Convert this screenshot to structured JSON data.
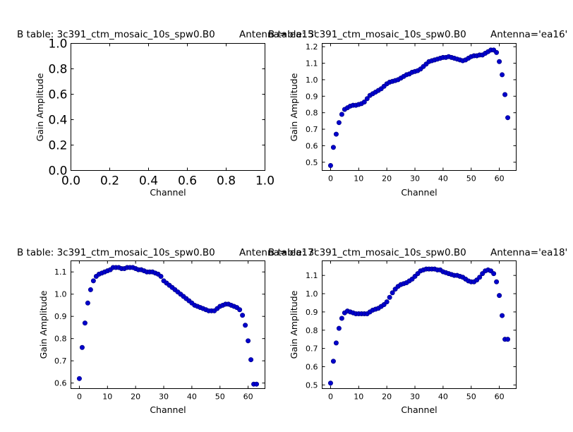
{
  "chart_data": [
    {
      "type": "scatter",
      "panel": "top-left",
      "title_left": "B table: 3c391_ctm_mosaic_10s_spw0.B0",
      "title_right": "Antenna='ea15'",
      "xlabel": "Channel",
      "ylabel": "Gain Amplitude",
      "xlim": [
        0,
        1
      ],
      "ylim": [
        0,
        1
      ],
      "xticks": [
        0.0,
        0.2,
        0.4,
        0.6,
        0.8,
        1.0
      ],
      "yticks": [
        0.0,
        0.2,
        0.4,
        0.6,
        0.8,
        1.0
      ],
      "xtick_labels": [
        "0.0",
        "0.2",
        "0.4",
        "0.6",
        "0.8",
        "1.0"
      ],
      "ytick_labels": [
        "0.0",
        "0.2",
        "0.4",
        "0.6",
        "0.8",
        "1.0"
      ],
      "series": []
    },
    {
      "type": "scatter",
      "panel": "top-right",
      "title_left": "B table: 3c391_ctm_mosaic_10s_spw0.B0",
      "title_right": "Antenna='ea16'",
      "xlabel": "Channel",
      "ylabel": "Gain Amplitude",
      "xlim": [
        -3,
        66
      ],
      "ylim": [
        0.45,
        1.22
      ],
      "xticks": [
        0,
        10,
        20,
        30,
        40,
        50,
        60
      ],
      "yticks": [
        0.5,
        0.6,
        0.7,
        0.8,
        0.9,
        1.0,
        1.1,
        1.2
      ],
      "xtick_labels": [
        "0",
        "10",
        "20",
        "30",
        "40",
        "50",
        "60"
      ],
      "ytick_labels": [
        "0.5",
        "0.6",
        "0.7",
        "0.8",
        "0.9",
        "1.0",
        "1.1",
        "1.2"
      ],
      "series": [
        {
          "color": "#0000cc",
          "x": [
            0,
            1,
            2,
            3,
            4,
            5,
            6,
            7,
            8,
            9,
            10,
            11,
            12,
            13,
            14,
            15,
            16,
            17,
            18,
            19,
            20,
            21,
            22,
            23,
            24,
            25,
            26,
            27,
            28,
            29,
            30,
            31,
            32,
            33,
            34,
            35,
            36,
            37,
            38,
            39,
            40,
            41,
            42,
            43,
            44,
            45,
            46,
            47,
            48,
            49,
            50,
            51,
            52,
            53,
            54,
            55,
            56,
            57,
            58,
            59,
            60,
            61,
            62,
            63
          ],
          "y": [
            0.48,
            0.59,
            0.67,
            0.74,
            0.79,
            0.82,
            0.83,
            0.84,
            0.845,
            0.845,
            0.85,
            0.855,
            0.865,
            0.885,
            0.905,
            0.915,
            0.925,
            0.935,
            0.945,
            0.96,
            0.975,
            0.985,
            0.99,
            0.995,
            1.0,
            1.01,
            1.02,
            1.03,
            1.035,
            1.045,
            1.05,
            1.055,
            1.065,
            1.08,
            1.095,
            1.11,
            1.115,
            1.12,
            1.125,
            1.13,
            1.135,
            1.135,
            1.14,
            1.135,
            1.13,
            1.125,
            1.12,
            1.115,
            1.12,
            1.13,
            1.14,
            1.145,
            1.145,
            1.15,
            1.15,
            1.16,
            1.17,
            1.18,
            1.18,
            1.165,
            1.11,
            1.03,
            0.91,
            0.77
          ]
        }
      ]
    },
    {
      "type": "scatter",
      "panel": "bottom-left",
      "title_left": "B table: 3c391_ctm_mosaic_10s_spw0.B0",
      "title_right": "Antenna='ea17'",
      "xlabel": "Channel",
      "ylabel": "Gain Amplitude",
      "xlim": [
        -3,
        66
      ],
      "ylim": [
        0.575,
        1.15
      ],
      "xticks": [
        0,
        10,
        20,
        30,
        40,
        50,
        60
      ],
      "yticks": [
        0.6,
        0.7,
        0.8,
        0.9,
        1.0,
        1.1
      ],
      "xtick_labels": [
        "0",
        "10",
        "20",
        "30",
        "40",
        "50",
        "60"
      ],
      "ytick_labels": [
        "0.6",
        "0.7",
        "0.8",
        "0.9",
        "1.0",
        "1.1"
      ],
      "series": [
        {
          "color": "#0000cc",
          "x": [
            0,
            1,
            2,
            3,
            4,
            5,
            6,
            7,
            8,
            9,
            10,
            11,
            12,
            13,
            14,
            15,
            16,
            17,
            18,
            19,
            20,
            21,
            22,
            23,
            24,
            25,
            26,
            27,
            28,
            29,
            30,
            31,
            32,
            33,
            34,
            35,
            36,
            37,
            38,
            39,
            40,
            41,
            42,
            43,
            44,
            45,
            46,
            47,
            48,
            49,
            50,
            51,
            52,
            53,
            54,
            55,
            56,
            57,
            58,
            59,
            60,
            61,
            62,
            63
          ],
          "y": [
            0.62,
            0.76,
            0.87,
            0.96,
            1.02,
            1.06,
            1.08,
            1.09,
            1.095,
            1.1,
            1.105,
            1.11,
            1.12,
            1.12,
            1.12,
            1.115,
            1.115,
            1.12,
            1.12,
            1.12,
            1.115,
            1.11,
            1.11,
            1.105,
            1.1,
            1.1,
            1.1,
            1.095,
            1.09,
            1.08,
            1.06,
            1.05,
            1.04,
            1.03,
            1.02,
            1.01,
            1.0,
            0.99,
            0.98,
            0.97,
            0.96,
            0.95,
            0.945,
            0.94,
            0.935,
            0.93,
            0.925,
            0.925,
            0.925,
            0.935,
            0.945,
            0.95,
            0.955,
            0.955,
            0.95,
            0.945,
            0.94,
            0.93,
            0.905,
            0.86,
            0.79,
            0.705,
            0.595,
            0.595
          ]
        }
      ]
    },
    {
      "type": "scatter",
      "panel": "bottom-right",
      "title_left": "B table: 3c391_ctm_mosaic_10s_spw0.B0",
      "title_right": "Antenna='ea18'",
      "xlabel": "Channel",
      "ylabel": "Gain Amplitude",
      "xlim": [
        -3,
        66
      ],
      "ylim": [
        0.48,
        1.18
      ],
      "xticks": [
        0,
        10,
        20,
        30,
        40,
        50,
        60
      ],
      "yticks": [
        0.5,
        0.6,
        0.7,
        0.8,
        0.9,
        1.0,
        1.1
      ],
      "xtick_labels": [
        "0",
        "10",
        "20",
        "30",
        "40",
        "50",
        "60"
      ],
      "ytick_labels": [
        "0.5",
        "0.6",
        "0.7",
        "0.8",
        "0.9",
        "1.0",
        "1.1"
      ],
      "series": [
        {
          "color": "#0000cc",
          "x": [
            0,
            1,
            2,
            3,
            4,
            5,
            6,
            7,
            8,
            9,
            10,
            11,
            12,
            13,
            14,
            15,
            16,
            17,
            18,
            19,
            20,
            21,
            22,
            23,
            24,
            25,
            26,
            27,
            28,
            29,
            30,
            31,
            32,
            33,
            34,
            35,
            36,
            37,
            38,
            39,
            40,
            41,
            42,
            43,
            44,
            45,
            46,
            47,
            48,
            49,
            50,
            51,
            52,
            53,
            54,
            55,
            56,
            57,
            58,
            59,
            60,
            61,
            62,
            63
          ],
          "y": [
            0.51,
            0.63,
            0.73,
            0.81,
            0.865,
            0.895,
            0.905,
            0.9,
            0.895,
            0.89,
            0.89,
            0.89,
            0.89,
            0.89,
            0.9,
            0.91,
            0.915,
            0.92,
            0.93,
            0.94,
            0.955,
            0.98,
            1.005,
            1.025,
            1.04,
            1.05,
            1.055,
            1.06,
            1.07,
            1.08,
            1.095,
            1.11,
            1.125,
            1.13,
            1.135,
            1.135,
            1.135,
            1.135,
            1.13,
            1.13,
            1.12,
            1.115,
            1.11,
            1.105,
            1.1,
            1.1,
            1.095,
            1.09,
            1.08,
            1.07,
            1.065,
            1.065,
            1.075,
            1.09,
            1.11,
            1.125,
            1.13,
            1.125,
            1.11,
            1.065,
            0.99,
            0.88,
            0.75,
            0.75
          ]
        }
      ]
    }
  ]
}
